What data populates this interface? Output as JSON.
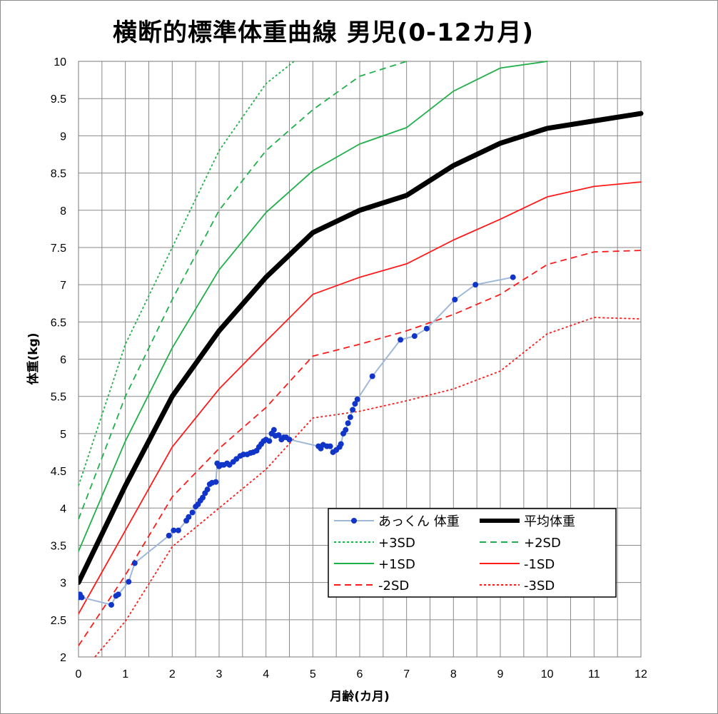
{
  "chart_data": {
    "type": "line",
    "title": "横断的標準体重曲線 男児(0-12カ月)",
    "xlabel": "月齢(カ月)",
    "ylabel": "体重(kg)",
    "xlim": [
      0,
      12
    ],
    "ylim": [
      2,
      10
    ],
    "x_ticks": [
      "0",
      "1",
      "2",
      "3",
      "4",
      "5",
      "6",
      "7",
      "8",
      "9",
      "10",
      "11",
      "12"
    ],
    "y_ticks": [
      "2",
      "2.5",
      "3",
      "3.5",
      "4",
      "4.5",
      "5",
      "5.5",
      "6",
      "6.5",
      "7",
      "7.5",
      "8",
      "8.5",
      "9",
      "9.5",
      "10"
    ],
    "grid": true,
    "legend_position": "bottom-right",
    "series": [
      {
        "name": "あっくん 体重",
        "color": "#9fb8d8",
        "marker_color": "#1035c8",
        "style": "marker-line",
        "points": [
          [
            0,
            2.8
          ],
          [
            0.03,
            2.84
          ],
          [
            0.07,
            2.8
          ],
          [
            0.7,
            2.7
          ],
          [
            0.8,
            2.82
          ],
          [
            0.85,
            2.84
          ],
          [
            1.07,
            3.01
          ],
          [
            1.2,
            3.26
          ],
          [
            1.93,
            3.63
          ],
          [
            2.03,
            3.7
          ],
          [
            2.13,
            3.7
          ],
          [
            2.3,
            3.83
          ],
          [
            2.35,
            3.88
          ],
          [
            2.43,
            3.94
          ],
          [
            2.5,
            4.02
          ],
          [
            2.55,
            4.05
          ],
          [
            2.6,
            4.1
          ],
          [
            2.65,
            4.14
          ],
          [
            2.7,
            4.2
          ],
          [
            2.75,
            4.25
          ],
          [
            2.8,
            4.32
          ],
          [
            2.85,
            4.34
          ],
          [
            2.93,
            4.35
          ],
          [
            2.96,
            4.6
          ],
          [
            3.0,
            4.56
          ],
          [
            3.05,
            4.58
          ],
          [
            3.1,
            4.58
          ],
          [
            3.17,
            4.6
          ],
          [
            3.22,
            4.58
          ],
          [
            3.3,
            4.62
          ],
          [
            3.37,
            4.66
          ],
          [
            3.45,
            4.7
          ],
          [
            3.52,
            4.72
          ],
          [
            3.6,
            4.72
          ],
          [
            3.67,
            4.74
          ],
          [
            3.73,
            4.75
          ],
          [
            3.8,
            4.77
          ],
          [
            3.85,
            4.82
          ],
          [
            3.9,
            4.86
          ],
          [
            3.95,
            4.9
          ],
          [
            4.0,
            4.92
          ],
          [
            4.07,
            4.9
          ],
          [
            4.12,
            5.0
          ],
          [
            4.17,
            5.05
          ],
          [
            4.2,
            4.97
          ],
          [
            4.27,
            4.98
          ],
          [
            4.33,
            4.92
          ],
          [
            4.38,
            4.95
          ],
          [
            4.43,
            4.95
          ],
          [
            4.5,
            4.92
          ],
          [
            5.12,
            4.83
          ],
          [
            5.17,
            4.8
          ],
          [
            5.22,
            4.85
          ],
          [
            5.3,
            4.83
          ],
          [
            5.37,
            4.83
          ],
          [
            5.43,
            4.75
          ],
          [
            5.5,
            4.78
          ],
          [
            5.57,
            4.82
          ],
          [
            5.6,
            4.86
          ],
          [
            5.65,
            5.0
          ],
          [
            5.7,
            5.05
          ],
          [
            5.75,
            5.14
          ],
          [
            5.8,
            5.22
          ],
          [
            5.85,
            5.32
          ],
          [
            5.9,
            5.4
          ],
          [
            5.95,
            5.46
          ],
          [
            6.27,
            5.77
          ],
          [
            6.87,
            6.26
          ],
          [
            7.17,
            6.31
          ],
          [
            7.43,
            6.41
          ],
          [
            8.03,
            6.8
          ],
          [
            8.47,
            7.0
          ],
          [
            9.27,
            7.1
          ]
        ]
      },
      {
        "name": "平均体重",
        "color": "#000000",
        "width": 7,
        "points": [
          [
            0,
            3.0
          ],
          [
            1,
            4.3
          ],
          [
            2,
            5.5
          ],
          [
            3,
            6.38
          ],
          [
            4,
            7.1
          ],
          [
            5,
            7.7
          ],
          [
            6,
            8.0
          ],
          [
            7,
            8.2
          ],
          [
            8,
            8.6
          ],
          [
            9,
            8.9
          ],
          [
            10,
            9.1
          ],
          [
            11,
            9.2
          ],
          [
            12,
            9.3
          ]
        ]
      },
      {
        "name": "+3SD",
        "color": "#1fb04a",
        "dash": "3,3",
        "points": [
          [
            0,
            4.3
          ],
          [
            1,
            6.2
          ],
          [
            2,
            7.5
          ],
          [
            3,
            8.8
          ],
          [
            4,
            9.7
          ],
          [
            4.6,
            10.0
          ]
        ]
      },
      {
        "name": "+2SD",
        "color": "#1fb04a",
        "dash": "9,6",
        "points": [
          [
            0,
            3.85
          ],
          [
            1,
            5.5
          ],
          [
            2,
            6.8
          ],
          [
            3,
            8.0
          ],
          [
            4,
            8.8
          ],
          [
            5,
            9.35
          ],
          [
            6,
            9.8
          ],
          [
            7,
            10.0
          ]
        ]
      },
      {
        "name": "+1SD",
        "color": "#1fb04a",
        "points": [
          [
            0,
            3.42
          ],
          [
            1,
            4.9
          ],
          [
            2,
            6.15
          ],
          [
            3,
            7.2
          ],
          [
            4,
            7.97
          ],
          [
            5,
            8.53
          ],
          [
            6,
            8.89
          ],
          [
            7,
            9.11
          ],
          [
            8,
            9.6
          ],
          [
            9,
            9.91
          ],
          [
            10,
            10.0
          ]
        ]
      },
      {
        "name": "-1SD",
        "color": "#ff1a1a",
        "points": [
          [
            0,
            2.58
          ],
          [
            1,
            3.7
          ],
          [
            2,
            4.82
          ],
          [
            3,
            5.6
          ],
          [
            4,
            6.24
          ],
          [
            5,
            6.87
          ],
          [
            6,
            7.1
          ],
          [
            7,
            7.28
          ],
          [
            8,
            7.6
          ],
          [
            9,
            7.88
          ],
          [
            10,
            8.18
          ],
          [
            11,
            8.32
          ],
          [
            12,
            8.38
          ]
        ]
      },
      {
        "name": "-2SD",
        "color": "#ff1a1a",
        "dash": "9,6",
        "points": [
          [
            0,
            2.15
          ],
          [
            1,
            3.1
          ],
          [
            2,
            4.15
          ],
          [
            3,
            4.8
          ],
          [
            4,
            5.35
          ],
          [
            5,
            6.04
          ],
          [
            6,
            6.2
          ],
          [
            7,
            6.38
          ],
          [
            8,
            6.6
          ],
          [
            9,
            6.87
          ],
          [
            10,
            7.27
          ],
          [
            11,
            7.44
          ],
          [
            12,
            7.46
          ]
        ]
      },
      {
        "name": "-3SD",
        "color": "#ff1a1a",
        "dash": "3,3",
        "points": [
          [
            0.35,
            2.0
          ],
          [
            1,
            2.48
          ],
          [
            2,
            3.48
          ],
          [
            3,
            4.0
          ],
          [
            4,
            4.52
          ],
          [
            5,
            5.21
          ],
          [
            6,
            5.3
          ],
          [
            7,
            5.44
          ],
          [
            8,
            5.6
          ],
          [
            9,
            5.84
          ],
          [
            10,
            6.34
          ],
          [
            11,
            6.56
          ],
          [
            12,
            6.54
          ]
        ]
      }
    ]
  }
}
